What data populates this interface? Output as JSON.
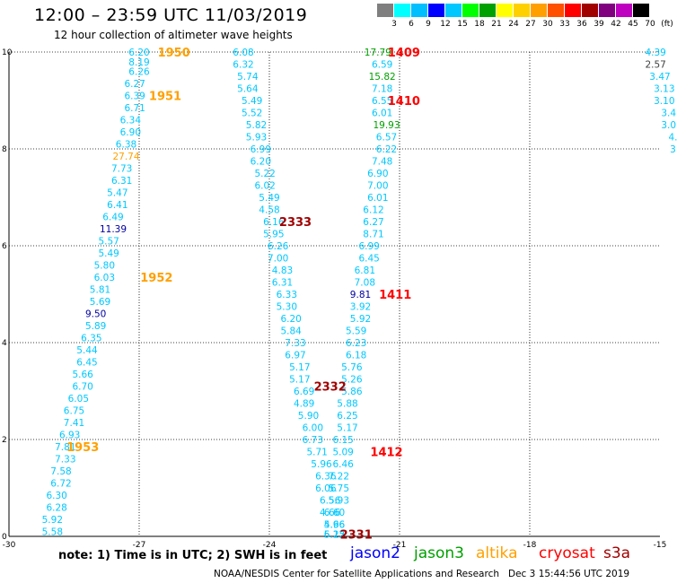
{
  "header": {
    "title": "12:00 – 23:59 UTC 11/03/2019",
    "subtitle": "12 hour collection of altimeter wave heights"
  },
  "scale": {
    "labels": [
      "3",
      "6",
      "9",
      "12",
      "15",
      "18",
      "21",
      "24",
      "27",
      "30",
      "33",
      "36",
      "39",
      "42",
      "45",
      "70",
      "(ft)"
    ],
    "colors": [
      "#7f7f7f",
      "#00ffff",
      "#00bfff",
      "#0000ff",
      "#00c8ff",
      "#00ff00",
      "#00a000",
      "#ffff00",
      "#ffd000",
      "#ffa000",
      "#ff5000",
      "#ff0000",
      "#a00000",
      "#800080",
      "#c000c0",
      "#000000"
    ]
  },
  "chart_data": {
    "type": "scatter",
    "xlim": [
      -30,
      -15
    ],
    "ylim": [
      0,
      10
    ],
    "xticks": [
      "-30",
      "-27",
      "-24",
      "-21",
      "-18",
      "-15"
    ],
    "yticks": [
      "0",
      "2",
      "4",
      "6",
      "8",
      "10"
    ],
    "grid": true,
    "points": [
      {
        "x": -27.0,
        "y": 10.0,
        "v": "6.20",
        "c": "#00c8ff"
      },
      {
        "x": -27.0,
        "y": 9.8,
        "v": "8.19",
        "c": "#00c8ff"
      },
      {
        "x": -27.0,
        "y": 9.6,
        "v": "6.26",
        "c": "#00c8ff"
      },
      {
        "x": -27.1,
        "y": 9.35,
        "v": "6.27",
        "c": "#00c8ff"
      },
      {
        "x": -27.1,
        "y": 9.1,
        "v": "6.39",
        "c": "#00c8ff"
      },
      {
        "x": -27.1,
        "y": 8.85,
        "v": "6.71",
        "c": "#00c8ff"
      },
      {
        "x": -27.2,
        "y": 8.6,
        "v": "6.34",
        "c": "#00c8ff"
      },
      {
        "x": -27.2,
        "y": 8.35,
        "v": "6.90",
        "c": "#00c8ff"
      },
      {
        "x": -27.3,
        "y": 8.1,
        "v": "6.38",
        "c": "#00c8ff"
      },
      {
        "x": -27.3,
        "y": 7.85,
        "v": "27.74",
        "c": "#ffa000"
      },
      {
        "x": -27.4,
        "y": 7.6,
        "v": "7.73",
        "c": "#00c8ff"
      },
      {
        "x": -27.4,
        "y": 7.35,
        "v": "6.31",
        "c": "#00c8ff"
      },
      {
        "x": -27.5,
        "y": 7.1,
        "v": "5.47",
        "c": "#00c8ff"
      },
      {
        "x": -27.5,
        "y": 6.85,
        "v": "6.41",
        "c": "#00c8ff"
      },
      {
        "x": -27.6,
        "y": 6.6,
        "v": "6.49",
        "c": "#00c8ff"
      },
      {
        "x": -27.6,
        "y": 6.35,
        "v": "11.39",
        "c": "#0000a0"
      },
      {
        "x": -27.7,
        "y": 6.1,
        "v": "5.57",
        "c": "#00c8ff"
      },
      {
        "x": -27.7,
        "y": 5.85,
        "v": "5.49",
        "c": "#00c8ff"
      },
      {
        "x": -27.8,
        "y": 5.6,
        "v": "5.80",
        "c": "#00c8ff"
      },
      {
        "x": -27.8,
        "y": 5.35,
        "v": "6.03",
        "c": "#00c8ff"
      },
      {
        "x": -27.9,
        "y": 5.1,
        "v": "5.81",
        "c": "#00c8ff"
      },
      {
        "x": -27.9,
        "y": 4.85,
        "v": "5.69",
        "c": "#00c8ff"
      },
      {
        "x": -28.0,
        "y": 4.6,
        "v": "9.50",
        "c": "#0000a0"
      },
      {
        "x": -28.0,
        "y": 4.35,
        "v": "5.89",
        "c": "#00c8ff"
      },
      {
        "x": -28.1,
        "y": 4.1,
        "v": "6.35",
        "c": "#00c8ff"
      },
      {
        "x": -28.2,
        "y": 3.85,
        "v": "5.44",
        "c": "#00c8ff"
      },
      {
        "x": -28.2,
        "y": 3.6,
        "v": "6.45",
        "c": "#00c8ff"
      },
      {
        "x": -28.3,
        "y": 3.35,
        "v": "5.66",
        "c": "#00c8ff"
      },
      {
        "x": -28.3,
        "y": 3.1,
        "v": "6.70",
        "c": "#00c8ff"
      },
      {
        "x": -28.4,
        "y": 2.85,
        "v": "6.05",
        "c": "#00c8ff"
      },
      {
        "x": -28.5,
        "y": 2.6,
        "v": "6.75",
        "c": "#00c8ff"
      },
      {
        "x": -28.5,
        "y": 2.35,
        "v": "7.41",
        "c": "#00c8ff"
      },
      {
        "x": -28.6,
        "y": 2.1,
        "v": "6.93",
        "c": "#00c8ff"
      },
      {
        "x": -28.7,
        "y": 1.85,
        "v": "7.81",
        "c": "#00c8ff"
      },
      {
        "x": -28.7,
        "y": 1.6,
        "v": "7.33",
        "c": "#00c8ff"
      },
      {
        "x": -28.8,
        "y": 1.35,
        "v": "7.58",
        "c": "#00c8ff"
      },
      {
        "x": -28.8,
        "y": 1.1,
        "v": "6.72",
        "c": "#00c8ff"
      },
      {
        "x": -28.9,
        "y": 0.85,
        "v": "6.30",
        "c": "#00c8ff"
      },
      {
        "x": -28.9,
        "y": 0.6,
        "v": "6.28",
        "c": "#00c8ff"
      },
      {
        "x": -29.0,
        "y": 0.35,
        "v": "5.92",
        "c": "#00c8ff"
      },
      {
        "x": -29.0,
        "y": 0.1,
        "v": "5.58",
        "c": "#00c8ff"
      },
      {
        "x": -24.6,
        "y": 10.0,
        "v": "6.08",
        "c": "#00c8ff"
      },
      {
        "x": -24.6,
        "y": 9.75,
        "v": "6.32",
        "c": "#00c8ff"
      },
      {
        "x": -24.5,
        "y": 9.5,
        "v": "5.74",
        "c": "#00c8ff"
      },
      {
        "x": -24.5,
        "y": 9.25,
        "v": "5.64",
        "c": "#00c8ff"
      },
      {
        "x": -24.4,
        "y": 9.0,
        "v": "5.49",
        "c": "#00c8ff"
      },
      {
        "x": -24.4,
        "y": 8.75,
        "v": "5.52",
        "c": "#00c8ff"
      },
      {
        "x": -24.3,
        "y": 8.5,
        "v": "5.82",
        "c": "#00c8ff"
      },
      {
        "x": -24.3,
        "y": 8.25,
        "v": "5.93",
        "c": "#00c8ff"
      },
      {
        "x": -24.2,
        "y": 8.0,
        "v": "6.99",
        "c": "#00c8ff"
      },
      {
        "x": -24.2,
        "y": 7.75,
        "v": "6.20",
        "c": "#00c8ff"
      },
      {
        "x": -24.1,
        "y": 7.5,
        "v": "5.22",
        "c": "#00c8ff"
      },
      {
        "x": -24.1,
        "y": 7.25,
        "v": "6.02",
        "c": "#00c8ff"
      },
      {
        "x": -24.0,
        "y": 7.0,
        "v": "5.49",
        "c": "#00c8ff"
      },
      {
        "x": -24.0,
        "y": 6.75,
        "v": "4.58",
        "c": "#00c8ff"
      },
      {
        "x": -23.9,
        "y": 6.5,
        "v": "6.16",
        "c": "#00c8ff"
      },
      {
        "x": -23.9,
        "y": 6.25,
        "v": "5.95",
        "c": "#00c8ff"
      },
      {
        "x": -23.8,
        "y": 6.0,
        "v": "6.26",
        "c": "#00c8ff"
      },
      {
        "x": -23.8,
        "y": 5.75,
        "v": "7.00",
        "c": "#00c8ff"
      },
      {
        "x": -23.7,
        "y": 5.5,
        "v": "4.83",
        "c": "#00c8ff"
      },
      {
        "x": -23.7,
        "y": 5.25,
        "v": "6.31",
        "c": "#00c8ff"
      },
      {
        "x": -23.6,
        "y": 5.0,
        "v": "6.33",
        "c": "#00c8ff"
      },
      {
        "x": -23.6,
        "y": 4.75,
        "v": "5.30",
        "c": "#00c8ff"
      },
      {
        "x": -23.5,
        "y": 4.5,
        "v": "6.20",
        "c": "#00c8ff"
      },
      {
        "x": -23.5,
        "y": 4.25,
        "v": "5.84",
        "c": "#00c8ff"
      },
      {
        "x": -23.4,
        "y": 4.0,
        "v": "7.33",
        "c": "#00c8ff"
      },
      {
        "x": -23.4,
        "y": 3.75,
        "v": "6.97",
        "c": "#00c8ff"
      },
      {
        "x": -23.3,
        "y": 3.5,
        "v": "5.17",
        "c": "#00c8ff"
      },
      {
        "x": -23.3,
        "y": 3.25,
        "v": "5.17",
        "c": "#00c8ff"
      },
      {
        "x": -23.2,
        "y": 3.0,
        "v": "6.69",
        "c": "#00c8ff"
      },
      {
        "x": -23.2,
        "y": 2.75,
        "v": "4.89",
        "c": "#00c8ff"
      },
      {
        "x": -23.1,
        "y": 2.5,
        "v": "5.90",
        "c": "#00c8ff"
      },
      {
        "x": -23.0,
        "y": 2.25,
        "v": "6.00",
        "c": "#00c8ff"
      },
      {
        "x": -23.0,
        "y": 2.0,
        "v": "6.73",
        "c": "#00c8ff"
      },
      {
        "x": -22.9,
        "y": 1.75,
        "v": "5.71",
        "c": "#00c8ff"
      },
      {
        "x": -22.8,
        "y": 1.5,
        "v": "5.96",
        "c": "#00c8ff"
      },
      {
        "x": -22.7,
        "y": 1.25,
        "v": "6.36",
        "c": "#00c8ff"
      },
      {
        "x": -22.7,
        "y": 1.0,
        "v": "6.06",
        "c": "#00c8ff"
      },
      {
        "x": -22.6,
        "y": 0.75,
        "v": "6.56",
        "c": "#00c8ff"
      },
      {
        "x": -22.6,
        "y": 0.5,
        "v": "4.66",
        "c": "#00c8ff"
      },
      {
        "x": -22.5,
        "y": 0.25,
        "v": "4.96",
        "c": "#00c8ff"
      },
      {
        "x": -22.5,
        "y": 0.05,
        "v": "5.15",
        "c": "#00c8ff"
      },
      {
        "x": -21.5,
        "y": 10.0,
        "v": "17.79",
        "c": "#00a000"
      },
      {
        "x": -21.4,
        "y": 9.75,
        "v": "6.59",
        "c": "#00c8ff"
      },
      {
        "x": -21.4,
        "y": 9.5,
        "v": "15.82",
        "c": "#00a000"
      },
      {
        "x": -21.4,
        "y": 9.25,
        "v": "7.18",
        "c": "#00c8ff"
      },
      {
        "x": -21.4,
        "y": 9.0,
        "v": "6.55",
        "c": "#00c8ff"
      },
      {
        "x": -21.4,
        "y": 8.75,
        "v": "6.01",
        "c": "#00c8ff"
      },
      {
        "x": -21.3,
        "y": 8.5,
        "v": "19.93",
        "c": "#00a000"
      },
      {
        "x": -21.3,
        "y": 8.25,
        "v": "6.57",
        "c": "#00c8ff"
      },
      {
        "x": -21.3,
        "y": 8.0,
        "v": "6.22",
        "c": "#00c8ff"
      },
      {
        "x": -21.4,
        "y": 7.75,
        "v": "7.48",
        "c": "#00c8ff"
      },
      {
        "x": -21.5,
        "y": 7.5,
        "v": "6.90",
        "c": "#00c8ff"
      },
      {
        "x": -21.5,
        "y": 7.25,
        "v": "7.00",
        "c": "#00c8ff"
      },
      {
        "x": -21.5,
        "y": 7.0,
        "v": "6.01",
        "c": "#00c8ff"
      },
      {
        "x": -21.6,
        "y": 6.75,
        "v": "6.12",
        "c": "#00c8ff"
      },
      {
        "x": -21.6,
        "y": 6.5,
        "v": "6.27",
        "c": "#00c8ff"
      },
      {
        "x": -21.6,
        "y": 6.25,
        "v": "8.71",
        "c": "#00c8ff"
      },
      {
        "x": -21.7,
        "y": 6.0,
        "v": "6.99",
        "c": "#00c8ff"
      },
      {
        "x": -21.7,
        "y": 5.75,
        "v": "6.45",
        "c": "#00c8ff"
      },
      {
        "x": -21.8,
        "y": 5.5,
        "v": "6.81",
        "c": "#00c8ff"
      },
      {
        "x": -21.8,
        "y": 5.25,
        "v": "7.08",
        "c": "#00c8ff"
      },
      {
        "x": -21.9,
        "y": 5.0,
        "v": "9.81",
        "c": "#0000a0"
      },
      {
        "x": -21.9,
        "y": 4.75,
        "v": "3.92",
        "c": "#00c8ff"
      },
      {
        "x": -21.9,
        "y": 4.5,
        "v": "5.92",
        "c": "#00c8ff"
      },
      {
        "x": -22.0,
        "y": 4.25,
        "v": "5.59",
        "c": "#00c8ff"
      },
      {
        "x": -22.0,
        "y": 4.0,
        "v": "6.23",
        "c": "#00c8ff"
      },
      {
        "x": -22.0,
        "y": 3.75,
        "v": "6.18",
        "c": "#00c8ff"
      },
      {
        "x": -22.1,
        "y": 3.5,
        "v": "5.76",
        "c": "#00c8ff"
      },
      {
        "x": -22.1,
        "y": 3.25,
        "v": "5.26",
        "c": "#00c8ff"
      },
      {
        "x": -22.1,
        "y": 3.0,
        "v": "5.86",
        "c": "#00c8ff"
      },
      {
        "x": -22.2,
        "y": 2.75,
        "v": "5.88",
        "c": "#00c8ff"
      },
      {
        "x": -22.2,
        "y": 2.5,
        "v": "6.25",
        "c": "#00c8ff"
      },
      {
        "x": -22.2,
        "y": 2.25,
        "v": "5.17",
        "c": "#00c8ff"
      },
      {
        "x": -22.3,
        "y": 2.0,
        "v": "6.15",
        "c": "#00c8ff"
      },
      {
        "x": -22.3,
        "y": 1.75,
        "v": "5.09",
        "c": "#00c8ff"
      },
      {
        "x": -22.3,
        "y": 1.5,
        "v": "6.46",
        "c": "#00c8ff"
      },
      {
        "x": -22.4,
        "y": 1.25,
        "v": "7.22",
        "c": "#00c8ff"
      },
      {
        "x": -22.4,
        "y": 1.0,
        "v": "5.75",
        "c": "#00c8ff"
      },
      {
        "x": -22.4,
        "y": 0.75,
        "v": "5.93",
        "c": "#00c8ff"
      },
      {
        "x": -22.5,
        "y": 0.5,
        "v": "6.60",
        "c": "#00c8ff"
      },
      {
        "x": -22.5,
        "y": 0.25,
        "v": "5.66",
        "c": "#00c8ff"
      },
      {
        "x": -22.5,
        "y": 0.05,
        "v": "6.22",
        "c": "#00c8ff"
      },
      {
        "x": -15.1,
        "y": 10.0,
        "v": "4.39",
        "c": "#00c8ff"
      },
      {
        "x": -15.1,
        "y": 9.75,
        "v": "2.57",
        "c": "#404040"
      },
      {
        "x": -15.0,
        "y": 9.5,
        "v": "3.47",
        "c": "#00c8ff"
      },
      {
        "x": -14.9,
        "y": 9.25,
        "v": "3.13",
        "c": "#00c8ff"
      },
      {
        "x": -14.9,
        "y": 9.0,
        "v": "3.10",
        "c": "#00c8ff"
      },
      {
        "x": -14.8,
        "y": 8.75,
        "v": "3.4",
        "c": "#00c8ff"
      },
      {
        "x": -14.8,
        "y": 8.5,
        "v": "3.0",
        "c": "#00c8ff"
      },
      {
        "x": -14.7,
        "y": 8.25,
        "v": "4.",
        "c": "#00c8ff"
      },
      {
        "x": -14.7,
        "y": 8.0,
        "v": "3",
        "c": "#00c8ff"
      }
    ],
    "annotations": [
      {
        "x": -26.2,
        "y": 10.0,
        "text": "1950",
        "c": "#ffa000"
      },
      {
        "x": -26.4,
        "y": 9.1,
        "text": "1951",
        "c": "#ffa000"
      },
      {
        "x": -26.6,
        "y": 5.35,
        "text": "1952",
        "c": "#ffa000"
      },
      {
        "x": -28.3,
        "y": 1.85,
        "text": "1953",
        "c": "#ffa000"
      },
      {
        "x": -23.4,
        "y": 6.5,
        "text": "2333",
        "c": "#a00000"
      },
      {
        "x": -22.6,
        "y": 3.1,
        "text": "2332",
        "c": "#a00000"
      },
      {
        "x": -22.0,
        "y": 0.05,
        "text": "2331",
        "c": "#a00000"
      },
      {
        "x": -20.9,
        "y": 10.0,
        "text": "1409",
        "c": "#ff0000"
      },
      {
        "x": -20.9,
        "y": 9.0,
        "text": "1410",
        "c": "#ff0000"
      },
      {
        "x": -21.1,
        "y": 5.0,
        "text": "1411",
        "c": "#ff0000"
      },
      {
        "x": -21.3,
        "y": 1.75,
        "text": "1412",
        "c": "#ff0000"
      }
    ]
  },
  "footer": {
    "note": "note: 1) Time is in UTC; 2) SWH is in feet",
    "satellites": [
      {
        "name": "jason2",
        "color": "#0000ff"
      },
      {
        "name": "jason3",
        "color": "#00a000"
      },
      {
        "name": "altika",
        "color": "#ffa000"
      },
      {
        "name": "cryosat",
        "color": "#ff0000"
      },
      {
        "name": "s3a",
        "color": "#a00000"
      }
    ],
    "credit": "NOAA/NESDIS Center for Satellite Applications and Research",
    "timestamp": "Dec  3 15:44:56 UTC 2019"
  }
}
